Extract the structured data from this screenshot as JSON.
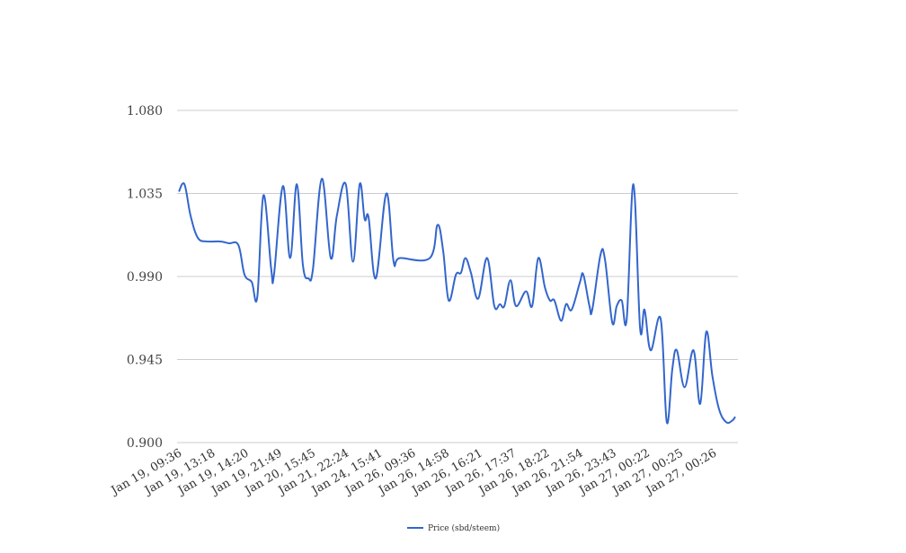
{
  "chart_data": {
    "type": "line",
    "title": "",
    "xlabel": "",
    "ylabel": "",
    "ylim": [
      0.9,
      1.08
    ],
    "yticks": [
      "0.900",
      "0.945",
      "0.990",
      "1.035",
      "1.080"
    ],
    "ytick_values": [
      0.9,
      0.945,
      0.99,
      1.035,
      1.08
    ],
    "grid": true,
    "legend_position": "bottom-center",
    "xtick_labels": [
      "Jan 19, 09:36",
      "Jan 19, 13:18",
      "Jan 19, 14:20",
      "Jan 19, 21:49",
      "Jan 20, 15:45",
      "Jan 21, 22:24",
      "Jan 24, 15:41",
      "Jan 26, 09:36",
      "Jan 26, 14:58",
      "Jan 26, 16:21",
      "Jan 26, 17:37",
      "Jan 26, 18:22",
      "Jan 26, 21:54",
      "Jan 26, 23:43",
      "Jan 27, 00:22",
      "Jan 27, 00:25",
      "Jan 27, 00:26"
    ],
    "x_range": [
      0,
      100
    ],
    "series": [
      {
        "name": "Price (sbd/steem)",
        "color": "#3366cc",
        "points": [
          [
            0,
            1.036
          ],
          [
            1.0,
            1.04
          ],
          [
            2.1,
            1.023
          ],
          [
            3.4,
            1.011
          ],
          [
            5.0,
            1.009
          ],
          [
            7.4,
            1.009
          ],
          [
            9.0,
            1.008
          ],
          [
            10.7,
            1.007
          ],
          [
            11.8,
            0.991
          ],
          [
            13.1,
            0.987
          ],
          [
            14.1,
            0.979
          ],
          [
            15.2,
            1.034
          ],
          [
            16.6,
            0.994
          ],
          [
            17.1,
            0.991
          ],
          [
            18.7,
            1.039
          ],
          [
            20.0,
            1.0
          ],
          [
            21.2,
            1.04
          ],
          [
            22.3,
            0.996
          ],
          [
            23.3,
            0.989
          ],
          [
            24.1,
            0.994
          ],
          [
            25.7,
            1.043
          ],
          [
            27.3,
            1.0
          ],
          [
            28.4,
            1.023
          ],
          [
            30.0,
            1.04
          ],
          [
            31.3,
            0.998
          ],
          [
            32.5,
            1.04
          ],
          [
            33.4,
            1.021
          ],
          [
            34.1,
            1.022
          ],
          [
            35.4,
            0.989
          ],
          [
            37.3,
            1.035
          ],
          [
            38.6,
            0.998
          ],
          [
            39.7,
            1.0
          ],
          [
            45.1,
            1.0
          ],
          [
            46.5,
            1.018
          ],
          [
            47.5,
            1.004
          ],
          [
            48.5,
            0.977
          ],
          [
            49.8,
            0.991
          ],
          [
            50.7,
            0.992
          ],
          [
            51.5,
            1.0
          ],
          [
            52.5,
            0.992
          ],
          [
            53.8,
            0.978
          ],
          [
            55.4,
            1.0
          ],
          [
            56.7,
            0.974
          ],
          [
            57.7,
            0.975
          ],
          [
            58.5,
            0.974
          ],
          [
            59.6,
            0.988
          ],
          [
            60.6,
            0.974
          ],
          [
            62.4,
            0.982
          ],
          [
            63.5,
            0.974
          ],
          [
            64.6,
            1.0
          ],
          [
            65.8,
            0.984
          ],
          [
            66.7,
            0.977
          ],
          [
            67.5,
            0.977
          ],
          [
            68.7,
            0.966
          ],
          [
            69.6,
            0.975
          ],
          [
            70.6,
            0.972
          ],
          [
            72.1,
            0.987
          ],
          [
            72.7,
            0.991
          ],
          [
            73.8,
            0.974
          ],
          [
            74.3,
            0.972
          ],
          [
            75.8,
            1.002
          ],
          [
            76.6,
            0.999
          ],
          [
            77.9,
            0.965
          ],
          [
            78.7,
            0.974
          ],
          [
            79.6,
            0.977
          ],
          [
            80.5,
            0.967
          ],
          [
            81.7,
            1.04
          ],
          [
            82.9,
            0.962
          ],
          [
            83.7,
            0.972
          ],
          [
            84.8,
            0.95
          ],
          [
            86.6,
            0.967
          ],
          [
            87.7,
            0.911
          ],
          [
            88.7,
            0.94
          ],
          [
            89.5,
            0.95
          ],
          [
            90.9,
            0.93
          ],
          [
            92.5,
            0.95
          ],
          [
            93.7,
            0.921
          ],
          [
            94.8,
            0.96
          ],
          [
            95.9,
            0.936
          ],
          [
            97.1,
            0.918
          ],
          [
            98.4,
            0.911
          ],
          [
            99.5,
            0.912
          ],
          [
            100,
            0.914
          ]
        ]
      }
    ]
  }
}
